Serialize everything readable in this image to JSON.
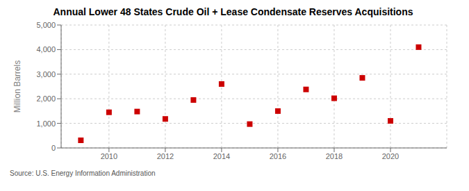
{
  "chart_data": {
    "type": "scatter",
    "title": "Annual Lower 48 States Crude Oil + Lease Condensate Reserves Acquisitions",
    "ylabel": "Million Barrels",
    "annotation": "Source: U.S. Energy Information Administration",
    "x": [
      2009,
      2010,
      2011,
      2012,
      2013,
      2014,
      2015,
      2016,
      2017,
      2018,
      2019,
      2020,
      2021
    ],
    "values": [
      310,
      1450,
      1480,
      1180,
      1950,
      2600,
      970,
      1500,
      2380,
      2020,
      2850,
      1100,
      4100
    ],
    "color": "#cc0000",
    "marker": "square",
    "grid": true,
    "xlim": [
      2008.3,
      2022.0
    ],
    "xticks": [
      2010,
      2012,
      2014,
      2016,
      2018,
      2020
    ],
    "ylim": [
      0,
      5000
    ],
    "yticks": [
      0,
      {
        "value": 1000,
        "label": "1,000"
      },
      {
        "value": 2000,
        "label": "2,000"
      },
      {
        "value": 3000,
        "label": "3,000"
      },
      {
        "value": 4000,
        "label": "4,000"
      },
      {
        "value": 5000,
        "label": "5,000"
      }
    ]
  }
}
